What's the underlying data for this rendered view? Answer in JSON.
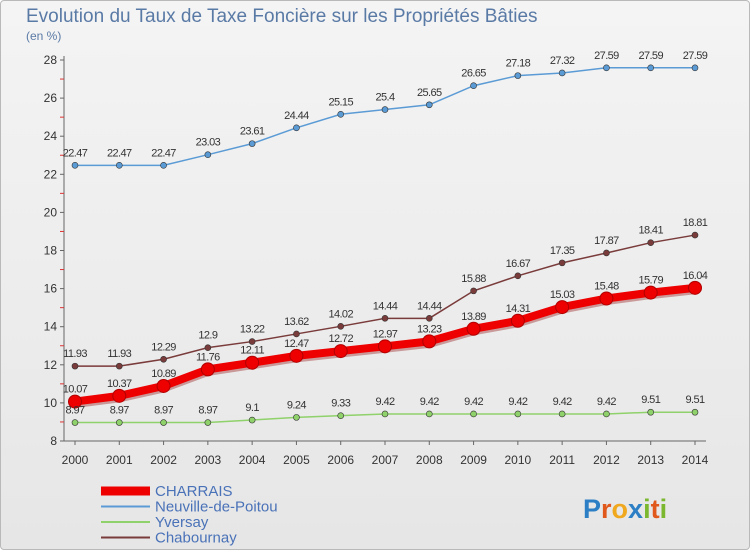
{
  "title": "Evolution du Taux de Taxe Foncière sur les Propriétés Bâties",
  "unit_label": "(en %)",
  "logo": {
    "letters": [
      {
        "ch": "P",
        "color": "#2c7fc4"
      },
      {
        "ch": "r",
        "color": "#e0581c"
      },
      {
        "ch": "o",
        "color": "#f0a81e"
      },
      {
        "ch": "x",
        "color": "#2c7fc4"
      },
      {
        "ch": "i",
        "color": "#7cb82f"
      },
      {
        "ch": "t",
        "color": "#e0581c"
      },
      {
        "ch": "i",
        "color": "#7cb82f"
      }
    ]
  },
  "chart_data": {
    "type": "line",
    "title": "Evolution du Taux de Taxe Foncière sur les Propriétés Bâties",
    "ylabel": "(en %)",
    "xlabel": "",
    "x": [
      "2000",
      "2001",
      "2002",
      "2003",
      "2004",
      "2005",
      "2006",
      "2007",
      "2008",
      "2009",
      "2010",
      "2011",
      "2012",
      "2013",
      "2014"
    ],
    "ylim": [
      8,
      28
    ],
    "yticks": [
      8,
      10,
      12,
      14,
      16,
      18,
      20,
      22,
      24,
      26,
      28
    ],
    "grid": "off",
    "legend_position": "bottom-left",
    "series": [
      {
        "name": "CHARRAIS",
        "color": "#ee0000",
        "highlight": true,
        "values": [
          10.07,
          10.37,
          10.89,
          11.76,
          12.11,
          12.47,
          12.72,
          12.97,
          13.23,
          13.89,
          14.31,
          15.03,
          15.48,
          15.79,
          16.04
        ]
      },
      {
        "name": "Neuville-de-Poitou",
        "color": "#5b9bd5",
        "highlight": false,
        "values": [
          22.47,
          22.47,
          22.47,
          23.03,
          23.61,
          24.44,
          25.15,
          25.4,
          25.65,
          26.65,
          27.18,
          27.32,
          27.59,
          27.59,
          27.59
        ]
      },
      {
        "name": "Yversay",
        "color": "#8fd16a",
        "highlight": false,
        "values": [
          8.97,
          8.97,
          8.97,
          8.97,
          9.1,
          9.24,
          9.33,
          9.42,
          9.42,
          9.42,
          9.42,
          9.42,
          9.42,
          9.51,
          9.51
        ]
      },
      {
        "name": "Chabournay",
        "color": "#7a3b3b",
        "highlight": false,
        "values": [
          11.93,
          11.93,
          12.29,
          12.9,
          13.22,
          13.62,
          14.02,
          14.44,
          14.44,
          15.88,
          16.67,
          17.35,
          17.87,
          18.41,
          18.81
        ]
      }
    ]
  }
}
